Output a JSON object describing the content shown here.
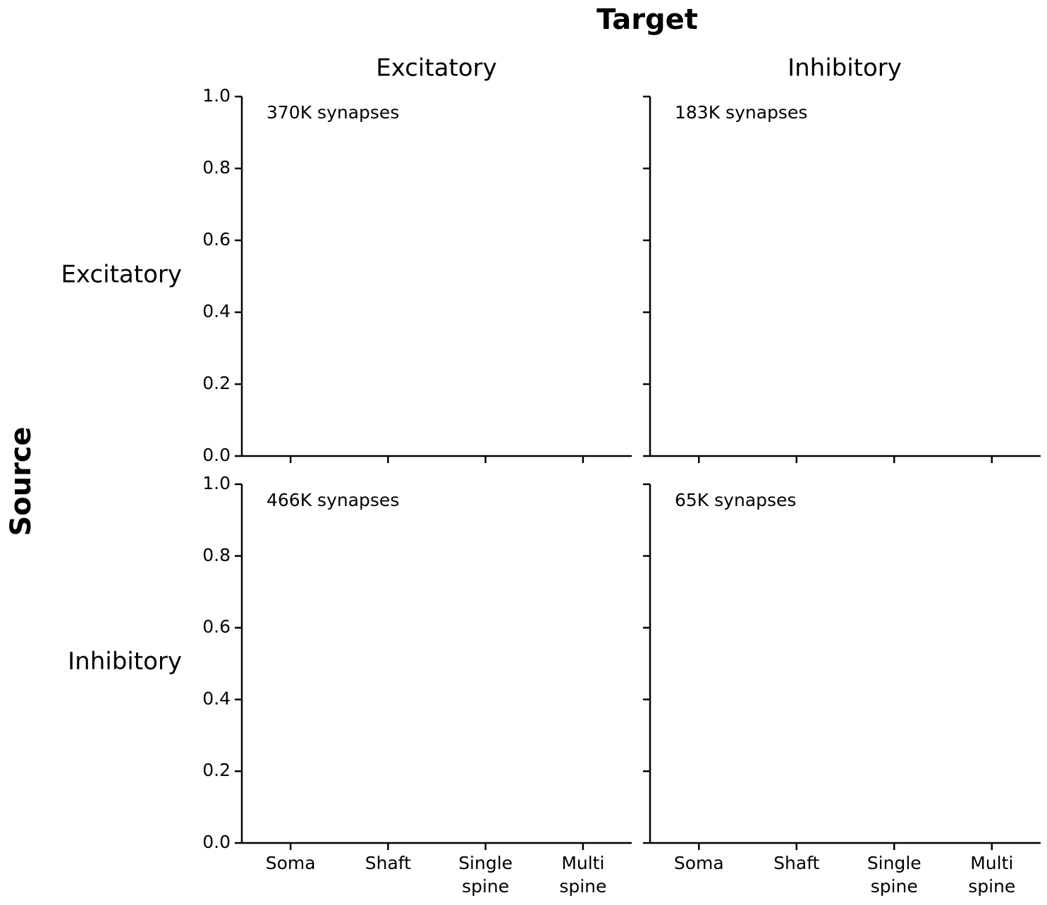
{
  "title": "Target",
  "ylabel": "Source",
  "column_titles": [
    "Excitatory",
    "Inhibitory"
  ],
  "row_titles": [
    "Excitatory",
    "Inhibitory"
  ],
  "chart_data": [
    {
      "type": "bar",
      "annotation": "370K synapses",
      "categories": [
        "Soma",
        "Shaft",
        "Single spine",
        "Multi spine"
      ],
      "ylim": [
        0,
        1
      ],
      "yticks": [
        {
          "value": 0,
          "label": "0.0"
        },
        {
          "value": 0.2,
          "label": "0.2"
        },
        {
          "value": 0.4,
          "label": "0.4"
        },
        {
          "value": 0.6,
          "label": "0.6"
        },
        {
          "value": 0.8,
          "label": "0.8"
        },
        {
          "value": 1,
          "label": "1.0"
        }
      ]
    },
    {
      "type": "bar",
      "annotation": "183K synapses",
      "categories": [
        "Soma",
        "Shaft",
        "Single spine",
        "Multi spine"
      ],
      "ylim": [
        0,
        1
      ],
      "yticks": [
        {
          "value": 0,
          "label": "0.0"
        },
        {
          "value": 0.2,
          "label": "0.2"
        },
        {
          "value": 0.4,
          "label": "0.4"
        },
        {
          "value": 0.6,
          "label": "0.6"
        },
        {
          "value": 0.8,
          "label": "0.8"
        },
        {
          "value": 1,
          "label": "1.0"
        }
      ]
    },
    {
      "type": "bar",
      "annotation": "466K synapses",
      "categories": [
        "Soma",
        "Shaft",
        "Single spine",
        "Multi spine"
      ],
      "ylim": [
        0,
        1
      ],
      "yticks": [
        {
          "value": 0,
          "label": "0.0"
        },
        {
          "value": 0.2,
          "label": "0.2"
        },
        {
          "value": 0.4,
          "label": "0.4"
        },
        {
          "value": 0.6,
          "label": "0.6"
        },
        {
          "value": 0.8,
          "label": "0.8"
        },
        {
          "value": 1,
          "label": "1.0"
        }
      ]
    },
    {
      "type": "bar",
      "annotation": "65K synapses",
      "categories": [
        "Soma",
        "Shaft",
        "Single spine",
        "Multi spine"
      ],
      "ylim": [
        0,
        1
      ],
      "yticks": [
        {
          "value": 0,
          "label": "0.0"
        },
        {
          "value": 0.2,
          "label": "0.2"
        },
        {
          "value": 0.4,
          "label": "0.4"
        },
        {
          "value": 0.6,
          "label": "0.6"
        },
        {
          "value": 0.8,
          "label": "0.8"
        },
        {
          "value": 1,
          "label": "1.0"
        }
      ]
    }
  ]
}
